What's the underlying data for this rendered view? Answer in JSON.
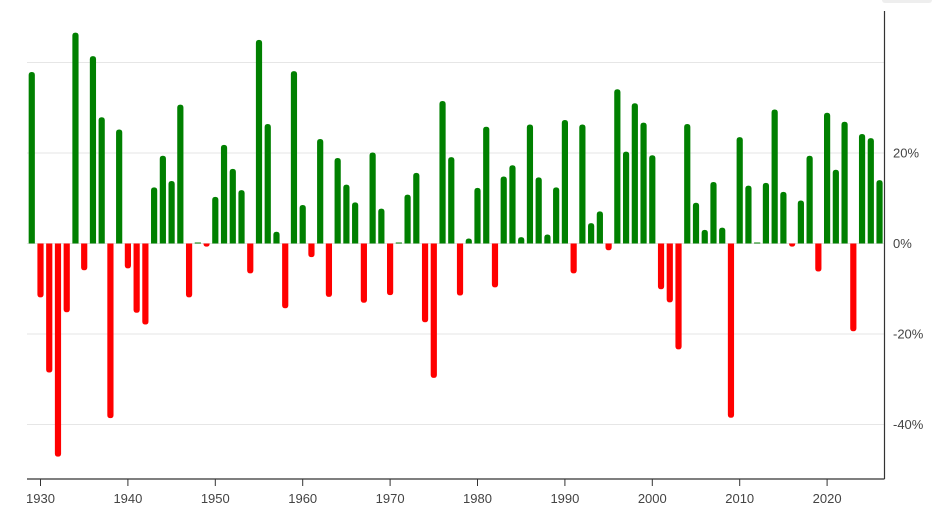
{
  "chart_data": {
    "type": "bar",
    "title": "",
    "xlabel": "",
    "ylabel": "",
    "ylim": [
      -52,
      51
    ],
    "xlim": [
      1928,
      2026
    ],
    "grid": true,
    "y_axis_position": "right",
    "legend": null,
    "x_ticks": [
      1930,
      1940,
      1950,
      1960,
      1970,
      1980,
      1990,
      2000,
      2010,
      2020
    ],
    "x_tick_labels": [
      "1930",
      "1940",
      "1950",
      "1960",
      "1970",
      "1980",
      "1990",
      "2000",
      "2010",
      "2020"
    ],
    "y_ticks": [
      40,
      20,
      0,
      -20,
      -40
    ],
    "y_tick_labels": [
      "",
      "20%",
      "0%",
      "-20%",
      "-40%"
    ],
    "colors": {
      "positive": "#008000",
      "negative": "#ff0000",
      "grid": "#e6e6e6",
      "axis": "#333333"
    },
    "categories": [
      1928,
      1929,
      1930,
      1931,
      1932,
      1933,
      1934,
      1935,
      1936,
      1937,
      1938,
      1939,
      1940,
      1941,
      1942,
      1943,
      1944,
      1945,
      1946,
      1947,
      1948,
      1949,
      1950,
      1951,
      1952,
      1953,
      1954,
      1955,
      1956,
      1957,
      1958,
      1959,
      1960,
      1961,
      1962,
      1963,
      1964,
      1965,
      1966,
      1967,
      1968,
      1969,
      1970,
      1971,
      1972,
      1973,
      1974,
      1975,
      1976,
      1977,
      1978,
      1979,
      1980,
      1981,
      1982,
      1983,
      1984,
      1985,
      1986,
      1987,
      1988,
      1989,
      1990,
      1991,
      1992,
      1993,
      1994,
      1995,
      1996,
      1997,
      1998,
      1999,
      2000,
      2001,
      2002,
      2003,
      2004,
      2005,
      2006,
      2007,
      2008,
      2009,
      2010,
      2011,
      2012,
      2013,
      2014,
      2015,
      2016,
      2017,
      2018,
      2019,
      2020,
      2021,
      2022,
      2023,
      2024,
      2025
    ],
    "values": [
      37.9,
      -11.9,
      -28.5,
      -47.1,
      -15.2,
      46.6,
      -5.9,
      41.4,
      27.9,
      -38.6,
      25.2,
      -5.5,
      -15.3,
      -17.9,
      12.4,
      19.4,
      13.8,
      30.7,
      -11.9,
      0.0,
      -0.7,
      10.3,
      21.8,
      16.5,
      11.8,
      -6.6,
      45.0,
      26.4,
      2.6,
      -14.3,
      38.1,
      8.5,
      -3.0,
      23.1,
      -11.8,
      18.9,
      13.0,
      9.1,
      -13.1,
      20.1,
      7.7,
      -11.4,
      0.1,
      10.8,
      15.6,
      -17.4,
      -29.7,
      31.5,
      19.1,
      -11.5,
      1.1,
      12.3,
      25.8,
      -9.7,
      14.8,
      17.3,
      1.4,
      26.3,
      14.6,
      2.0,
      12.4,
      27.3,
      -6.6,
      26.3,
      4.5,
      7.1,
      -1.5,
      34.1,
      20.3,
      31.0,
      26.7,
      19.5,
      -10.1,
      -13.0,
      -23.4,
      26.4,
      9.0,
      3.0,
      13.6,
      3.5,
      -38.5,
      23.5,
      12.8,
      0.0,
      13.4,
      29.6,
      11.4,
      -0.7,
      9.5,
      19.4,
      -6.2,
      28.9,
      16.3,
      26.9,
      -19.4,
      24.2,
      23.3,
      14.0
    ]
  }
}
